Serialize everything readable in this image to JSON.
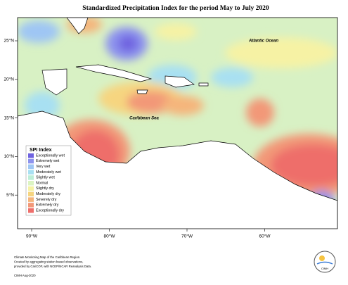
{
  "title": "Standardized Precipitation Index for the period May to July 2020",
  "places": [
    "Atlantic Ocean",
    "Caribbean Sea"
  ],
  "lon_labels": [
    "90°W",
    "80°W",
    "70°W",
    "60°W"
  ],
  "lat_labels": [
    "25°N",
    "20°N",
    "15°N",
    "10°N",
    "5°N"
  ],
  "legend": {
    "title": "SPI Index",
    "items": [
      {
        "label": "Exceptionally wet",
        "color": "#6f63e0"
      },
      {
        "label": "Extremely wet",
        "color": "#8d93ee"
      },
      {
        "label": "Very wet",
        "color": "#9fc6f4"
      },
      {
        "label": "Moderately wet",
        "color": "#a8e0f2"
      },
      {
        "label": "Slightly wet",
        "color": "#bdeed8"
      },
      {
        "label": "Normal",
        "color": "#dcf4c2"
      },
      {
        "label": "Slightly dry",
        "color": "#f6f2a4"
      },
      {
        "label": "Moderately dry",
        "color": "#f6d580"
      },
      {
        "label": "Severely dry",
        "color": "#f5b57c"
      },
      {
        "label": "Extremely dry",
        "color": "#f29878"
      },
      {
        "label": "Exceptionally dry",
        "color": "#ee6e6b"
      }
    ]
  },
  "footer": [
    "Climate Monitoring Map of the Caribbean Region.",
    "Created by aggregating station based observations,",
    "provided by CariCOF, with NCEP/NCAR Reanalysis Data.",
    "CIMH Aug-2020"
  ],
  "logo": "CIMH"
}
